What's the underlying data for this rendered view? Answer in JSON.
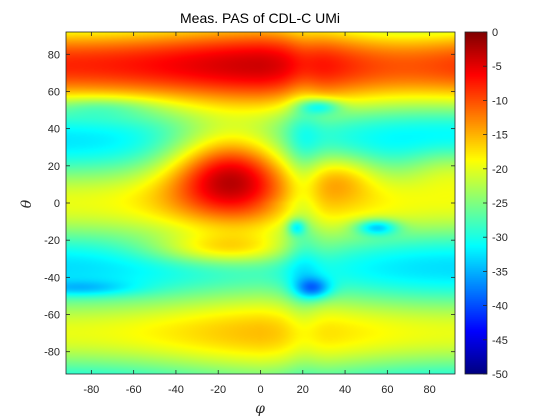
{
  "chart_data": {
    "type": "heatmap",
    "title": "Meas. PAS of CDL-C UMi",
    "xlabel": "φ",
    "ylabel": "θ",
    "xlim": [
      -92,
      92
    ],
    "ylim": [
      -92,
      92
    ],
    "x_ticks": [
      -80,
      -60,
      -40,
      -20,
      0,
      20,
      40,
      60,
      80
    ],
    "y_ticks": [
      -80,
      -60,
      -40,
      -20,
      0,
      20,
      40,
      60,
      80
    ],
    "colorbar": {
      "colormap": "jet",
      "clim": [
        -50,
        0
      ],
      "ticks": [
        0,
        -5,
        -10,
        -15,
        -20,
        -25,
        -30,
        -35,
        -40,
        -45,
        -50
      ]
    },
    "grid": false,
    "features": [
      {
        "description": "main lobe peak",
        "phi": -15,
        "theta": 18,
        "value_dB": -1
      },
      {
        "description": "broad upper band",
        "phi": -20,
        "theta": 75,
        "value_dB": -13
      },
      {
        "description": "null",
        "phi": 25,
        "theta": -46,
        "value_dB": -44
      },
      {
        "description": "null",
        "phi": 55,
        "theta": -13,
        "value_dB": -39
      },
      {
        "description": "null",
        "phi": 17,
        "theta": -13,
        "value_dB": -36
      },
      {
        "description": "null",
        "phi": 28,
        "theta": 52,
        "value_dB": -36
      },
      {
        "description": "secondary lobe",
        "phi": 38,
        "theta": 15,
        "value_dB": -14
      },
      {
        "description": "secondary lobe",
        "phi": -17,
        "theta": -25,
        "value_dB": -14
      }
    ]
  }
}
